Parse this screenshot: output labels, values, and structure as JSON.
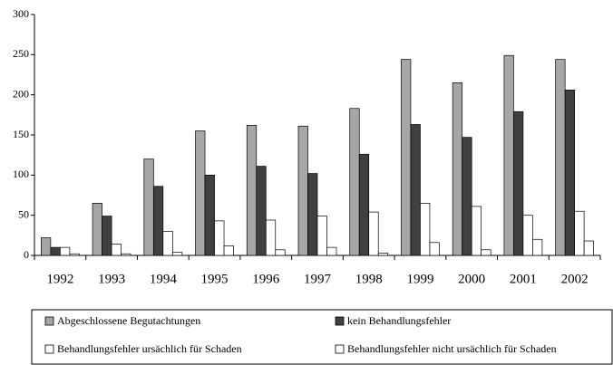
{
  "chart_data": {
    "type": "bar",
    "categories": [
      "1992",
      "1993",
      "1994",
      "1995",
      "1996",
      "1997",
      "1998",
      "1999",
      "2000",
      "2001",
      "2002"
    ],
    "series": [
      {
        "name": "Abgeschlossene Begutachtungen",
        "color": "#a6a6a6",
        "values": [
          22,
          65,
          120,
          155,
          162,
          161,
          183,
          244,
          215,
          249,
          244
        ]
      },
      {
        "name": "kein Behandlungsfehler",
        "color": "#404040",
        "values": [
          10,
          49,
          86,
          100,
          111,
          102,
          126,
          163,
          147,
          179,
          206
        ]
      },
      {
        "name": "Behandlungsfehler ursächlich für Schaden",
        "color": "#ffffff",
        "values": [
          10,
          14,
          30,
          43,
          44,
          49,
          54,
          65,
          61,
          50,
          55
        ]
      },
      {
        "name": "Behandlungsfehler nicht ursächlich für Schaden",
        "color": "#ffffff",
        "values": [
          2,
          2,
          4,
          12,
          7,
          10,
          3,
          16,
          7,
          20,
          18
        ]
      }
    ],
    "ylim": [
      0,
      300
    ],
    "yticks": [
      0,
      50,
      100,
      150,
      200,
      250,
      300
    ],
    "legend": "bottom"
  }
}
